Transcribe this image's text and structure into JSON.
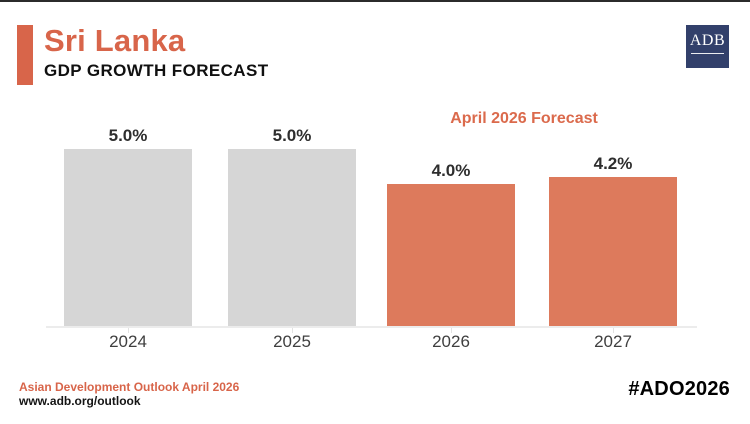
{
  "header": {
    "title": "Sri Lanka",
    "subtitle": "GDP GROWTH FORECAST",
    "logo_text": "ADB"
  },
  "chart_data": {
    "type": "bar",
    "title": "Sri Lanka GDP Growth Forecast",
    "categories": [
      "2024",
      "2025",
      "2026",
      "2027"
    ],
    "values": [
      5.0,
      5.0,
      4.0,
      4.2
    ],
    "value_labels": [
      "5.0%",
      "5.0%",
      "4.0%",
      "4.2%"
    ],
    "annotation": "April 2026 Forecast",
    "annotation_applies_to": [
      "2026",
      "2027"
    ],
    "ylim": [
      0,
      5.5
    ],
    "grid": false,
    "legend": "none",
    "bar_colors": [
      "#D6D6D6",
      "#D6D6D6",
      "#DD7A5C",
      "#DD7A5C"
    ],
    "xlabel": "",
    "ylabel": ""
  },
  "footer": {
    "source_line": "Asian Development Outlook April 2026",
    "url": "www.adb.org/outlook",
    "hashtag": "#ADO2026"
  },
  "colors": {
    "accent_orange": "#D8654A",
    "annotation_orange": "#DB6A4C",
    "bar_orange": "#DD7A5C",
    "bar_gray": "#D6D6D6",
    "logo_navy": "#32406B",
    "value_label_dark": "#2E2E2E",
    "axis_gray": "#ECECEC"
  }
}
